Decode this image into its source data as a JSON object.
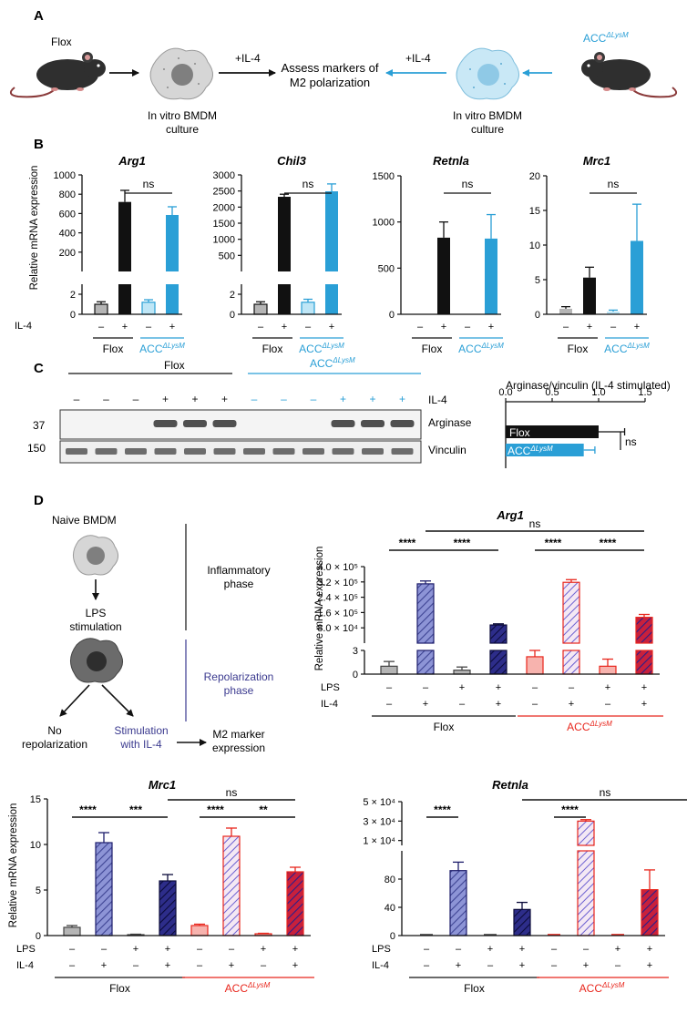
{
  "panels": {
    "A": {
      "label": "A",
      "flox_label": "Flox",
      "acc_base": "ACC",
      "acc_sup": "ΔLysM",
      "left_culture": [
        "In vitro BMDM",
        "culture"
      ],
      "right_culture": [
        "In vitro BMDM",
        "culture"
      ],
      "left_arrow_label": "+IL-4",
      "right_arrow_label": "+IL-4",
      "center_text": [
        "Assess markers of",
        "M2 polarization"
      ]
    },
    "B": {
      "label": "B",
      "ylabel": "Relative mRNA expression",
      "il4_row_label": "IL-4",
      "minus": "–",
      "plus": "+",
      "flox_label": "Flox",
      "acc_base": "ACC",
      "acc_sup": "ΔLysM",
      "ns_label": "ns"
    },
    "C": {
      "label": "C",
      "flox_label": "Flox",
      "acc_base": "ACC",
      "acc_sup": "ΔLysM",
      "il4_label": "IL-4",
      "il4_signs": [
        "–",
        "–",
        "–",
        "+",
        "+",
        "+",
        "–",
        "–",
        "–",
        "+",
        "+",
        "+"
      ],
      "mw": [
        "37",
        "150"
      ],
      "band_labels": [
        "Arginase",
        "Vinculin"
      ],
      "quant_title": "Arginase/vinculin (IL-4 stimulated)",
      "ns_label": "ns"
    },
    "D": {
      "label": "D",
      "naive": "Naive BMDM",
      "lps_stim": [
        "LPS",
        "stimulation"
      ],
      "inflammatory": [
        "Inflammatory",
        "phase"
      ],
      "repolarization": [
        "Repolarization",
        "phase"
      ],
      "no_repol": [
        "No",
        "repolarization"
      ],
      "stim_il4": [
        "Stimulation",
        "with IL-4"
      ],
      "m2": [
        "M2 marker",
        "expression"
      ],
      "ylabel": "Relative mRNA expression",
      "lps_label": "LPS",
      "il4_label": "IL-4",
      "minus": "–",
      "plus": "+",
      "flox_label": "Flox",
      "acc_base": "ACC",
      "acc_sup": "ΔLysM",
      "stars4": "****",
      "stars3": "***",
      "stars2": "**",
      "ns_label": "ns"
    }
  },
  "colors": {
    "flox_dark": "#111111",
    "acc_cyan": "#2a9fd6",
    "flox_gray": "#b5b5b5",
    "acc_light_cyan": "#bfe6f6",
    "hatch_blue": "#7f86cc",
    "hatch_navy": "#1d1d6b",
    "acc_red": "#e8261c",
    "acc_pink": "#f7b3ae",
    "repol_navy": "#3b3a8f"
  },
  "chart_data": [
    {
      "type": "bar",
      "title": "Arg1",
      "panel": "B",
      "categories": [
        "Flox –",
        "Flox +",
        "ACCΔLysM –",
        "ACCΔLysM +"
      ],
      "values": [
        1.0,
        720,
        1.2,
        585
      ],
      "errors": [
        0.25,
        120,
        0.25,
        85
      ],
      "ylabel": "Relative mRNA expression",
      "ylim_lower": [
        0,
        3
      ],
      "ylim_upper": [
        0,
        1000
      ],
      "lower_ticks": [
        "0",
        "2"
      ],
      "upper_ticks": [
        "200",
        "400",
        "600",
        "800",
        "1000"
      ],
      "annotation": "ns"
    },
    {
      "type": "bar",
      "title": "Chil3",
      "panel": "B",
      "categories": [
        "Flox –",
        "Flox +",
        "ACCΔLysM –",
        "ACCΔLysM +"
      ],
      "values": [
        1.0,
        2320,
        1.2,
        2490
      ],
      "errors": [
        0.25,
        80,
        0.3,
        230
      ],
      "ylim_lower": [
        0,
        3
      ],
      "ylim_upper": [
        0,
        3000
      ],
      "lower_ticks": [
        "0",
        "2"
      ],
      "upper_ticks": [
        "500",
        "1000",
        "1500",
        "2000",
        "2500",
        "3000"
      ],
      "annotation": "ns"
    },
    {
      "type": "bar",
      "title": "Retnla",
      "panel": "B",
      "categories": [
        "Flox –",
        "Flox +",
        "ACCΔLysM –",
        "ACCΔLysM +"
      ],
      "values": [
        0,
        830,
        0,
        820
      ],
      "errors": [
        0,
        170,
        0,
        260
      ],
      "ylim": [
        0,
        1500
      ],
      "ticks": [
        "0",
        "500",
        "1000",
        "1500"
      ],
      "annotation": "ns"
    },
    {
      "type": "bar",
      "title": "Mrc1",
      "panel": "B",
      "categories": [
        "Flox –",
        "Flox +",
        "ACCΔLysM –",
        "ACCΔLysM +"
      ],
      "values": [
        0.8,
        5.3,
        0.4,
        10.6
      ],
      "errors": [
        0.3,
        1.5,
        0.2,
        5.3
      ],
      "ylim": [
        0,
        20
      ],
      "ticks": [
        "0",
        "5",
        "10",
        "15",
        "20"
      ],
      "annotation": "ns"
    },
    {
      "type": "bar",
      "title": "Arginase/vinculin (IL-4 stimulated)",
      "panel": "C",
      "orientation": "horizontal",
      "categories": [
        "Flox",
        "ACCΔLysM"
      ],
      "values": [
        1.0,
        0.84
      ],
      "errors": [
        0.28,
        0.12
      ],
      "xlim": [
        0,
        1.5
      ],
      "ticks": [
        "0.0",
        "0.5",
        "1.0",
        "1.5"
      ],
      "annotation": "ns"
    },
    {
      "type": "bar",
      "title": "Arg1",
      "panel": "D",
      "categories": [
        "Flox –/–",
        "Flox –/IL-4",
        "Flox LPS/–",
        "Flox LPS/IL-4",
        "ACCΔLysM –/–",
        "ACCΔLysM –/IL-4",
        "ACCΔLysM LPS/–",
        "ACCΔLysM LPS/IL-4"
      ],
      "values": [
        1.0,
        310000,
        0.5,
        95000,
        2.2,
        318000,
        1.0,
        135000
      ],
      "errors": [
        0.6,
        15000,
        0.4,
        6000,
        0.8,
        14000,
        0.9,
        15000
      ],
      "ylim_lower": [
        0,
        3
      ],
      "ylim_upper": [
        0,
        400000
      ],
      "lower_ticks": [
        "0",
        "3"
      ],
      "upper_ticks": [
        "8.0 × 10⁴",
        "1.6 × 10⁵",
        "2.4 × 10⁵",
        "3.2 × 10⁵",
        "4.0 × 10⁵"
      ],
      "annotations": [
        "****",
        "****",
        "****",
        "****",
        "ns"
      ]
    },
    {
      "type": "bar",
      "title": "Mrc1",
      "panel": "D",
      "categories": [
        "Flox –/–",
        "Flox –/IL-4",
        "Flox LPS/–",
        "Flox LPS/IL-4",
        "ACCΔLysM –/–",
        "ACCΔLysM –/IL-4",
        "ACCΔLysM LPS/–",
        "ACCΔLysM LPS/IL-4"
      ],
      "values": [
        0.9,
        10.2,
        0.1,
        6.0,
        1.1,
        10.9,
        0.2,
        7.0
      ],
      "errors": [
        0.2,
        1.1,
        0.05,
        0.7,
        0.15,
        0.9,
        0.05,
        0.5
      ],
      "ylim": [
        0,
        15
      ],
      "ticks": [
        "0",
        "5",
        "10",
        "15"
      ],
      "annotations": [
        "****",
        "***",
        "****",
        "**",
        "ns"
      ]
    },
    {
      "type": "bar",
      "title": "Retnla",
      "panel": "D",
      "categories": [
        "Flox –/–",
        "Flox –/IL-4",
        "Flox LPS/–",
        "Flox LPS/IL-4",
        "ACCΔLysM –/–",
        "ACCΔLysM –/IL-4",
        "ACCΔLysM LPS/–",
        "ACCΔLysM LPS/IL-4"
      ],
      "values": [
        0.5,
        92,
        0.3,
        37,
        0.5,
        30000,
        0.3,
        65
      ],
      "errors": [
        0,
        12,
        0,
        10,
        0,
        1500,
        0,
        28
      ],
      "ylim_lower": [
        0,
        120
      ],
      "lower_ticks": [
        "0",
        "40",
        "80"
      ],
      "upper_ticks": [
        "1 × 10⁴",
        "3 × 10⁴",
        "5 × 10⁴"
      ],
      "annotations": [
        "****",
        "****",
        "ns"
      ]
    }
  ]
}
